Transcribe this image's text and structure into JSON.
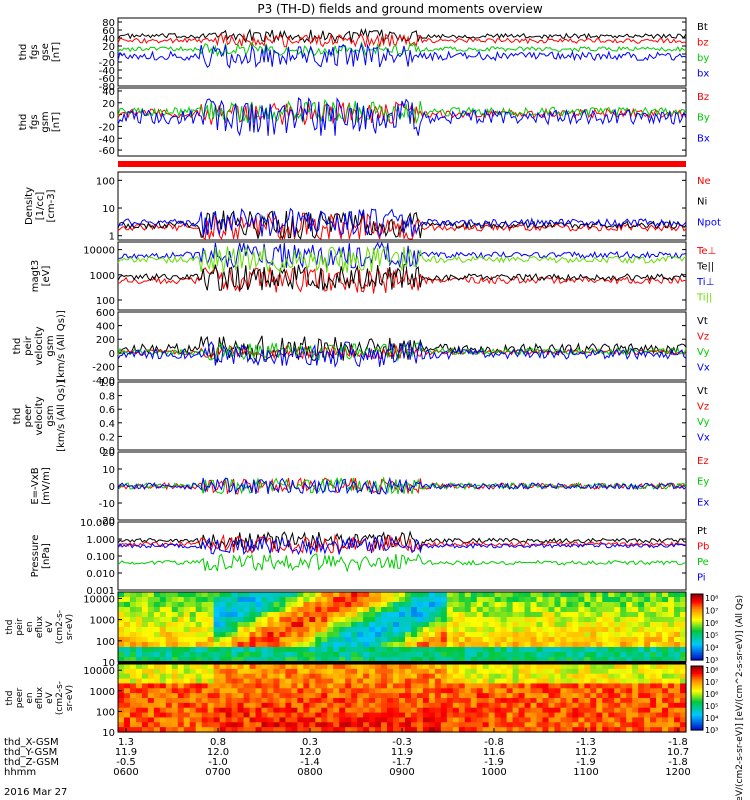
{
  "title": "P3 (TH-D) fields and ground moments overview",
  "colors": {
    "black": "#000000",
    "red": "#ff0000",
    "green": "#00cc00",
    "blue": "#0000ff",
    "lightgreen": "#66dd00",
    "redbar": "#ff0000"
  },
  "chart_data": {
    "type": "line",
    "x_axis": {
      "rows": [
        {
          "label": "thd_X-GSM",
          "values": [
            "1.3",
            "0.8",
            "0.3",
            "-0.3",
            "-0.8",
            "-1.3",
            "-1.8"
          ]
        },
        {
          "label": "thd_Y-GSM",
          "values": [
            "11.9",
            "12.0",
            "12.0",
            "11.9",
            "11.6",
            "11.2",
            "10.7"
          ]
        },
        {
          "label": "thd_Z-GSM",
          "values": [
            "-0.5",
            "-1.0",
            "-1.4",
            "-1.7",
            "-1.9",
            "-1.9",
            "-1.8"
          ]
        },
        {
          "label": "hhmm",
          "values": [
            "0600",
            "0700",
            "0800",
            "0900",
            "1000",
            "1100",
            "1200"
          ]
        }
      ],
      "date": "2016 Mar 27"
    },
    "panels": [
      {
        "id": "fgs_gse",
        "ylabel": [
          "thd",
          "fgs",
          "gse",
          "[nT]"
        ],
        "scale": "linear",
        "ylim": [
          -80,
          90
        ],
        "ticks": [
          "80",
          "60",
          "40",
          "20",
          "0",
          "-20",
          "-40",
          "-60",
          "-80"
        ],
        "series": [
          {
            "name": "Bt",
            "color": "black",
            "mean": 45,
            "amp": 10
          },
          {
            "name": "bz",
            "color": "red",
            "mean": 33,
            "amp": 10
          },
          {
            "name": "by",
            "color": "green",
            "mean": 12,
            "amp": 10
          },
          {
            "name": "bx",
            "color": "blue",
            "mean": -5,
            "amp": 18
          }
        ]
      },
      {
        "id": "fgs_gsm",
        "ylabel": [
          "thd",
          "fgs",
          "gsm",
          "[nT]"
        ],
        "scale": "linear",
        "ylim": [
          -70,
          45
        ],
        "ticks": [
          "40",
          "20",
          "0",
          "-20",
          "-40",
          "-60"
        ],
        "series": [
          {
            "name": "Bz",
            "color": "red",
            "mean": 2,
            "amp": 12
          },
          {
            "name": "By",
            "color": "green",
            "mean": 5,
            "amp": 12
          },
          {
            "name": "Bx",
            "color": "blue",
            "mean": -4,
            "amp": 20
          }
        ]
      },
      {
        "id": "density",
        "ylabel": [
          "Density",
          "[1/cc]",
          "[cm-3]"
        ],
        "scale": "log",
        "ylim": [
          0.7,
          200
        ],
        "ticks": [
          "100",
          "10",
          "1"
        ],
        "series": [
          {
            "name": "Ne",
            "color": "red",
            "mean": 2,
            "amp": 4
          },
          {
            "name": "Ni",
            "color": "black",
            "mean": 2.5,
            "amp": 5
          },
          {
            "name": "Npot",
            "color": "blue",
            "mean": 3,
            "amp": 60
          }
        ]
      },
      {
        "id": "temp",
        "ylabel": [
          "magt3",
          "[eV]"
        ],
        "scale": "log",
        "ylim": [
          40,
          20000
        ],
        "ticks": [
          "10000",
          "1000",
          "100"
        ],
        "series": [
          {
            "name": "Te⊥",
            "color": "red",
            "mean": 600,
            "amp": 200
          },
          {
            "name": "Te||",
            "color": "black",
            "mean": 800,
            "amp": 250
          },
          {
            "name": "Ti⊥",
            "color": "blue",
            "mean": 6000,
            "amp": 2000
          },
          {
            "name": "Ti||",
            "color": "lightgreen",
            "mean": 4000,
            "amp": 1500
          }
        ]
      },
      {
        "id": "vi",
        "ylabel": [
          "thd",
          "peir",
          "velocity",
          "gsm",
          "[km/s (All Qs)]"
        ],
        "scale": "linear",
        "ylim": [
          -400,
          600
        ],
        "ticks": [
          "600",
          "400",
          "200",
          "0",
          "-200",
          "-400"
        ],
        "series": [
          {
            "name": "Vt",
            "color": "black",
            "mean": 60,
            "amp": 120
          },
          {
            "name": "Vz",
            "color": "red",
            "mean": 10,
            "amp": 60
          },
          {
            "name": "Vy",
            "color": "green",
            "mean": 20,
            "amp": 80
          },
          {
            "name": "Vx",
            "color": "blue",
            "mean": -20,
            "amp": 120
          }
        ]
      },
      {
        "id": "ve",
        "ylabel": [
          "thd",
          "peer",
          "velocity",
          "gsm",
          "[km/s (All Qs)]"
        ],
        "scale": "linear",
        "ylim": [
          0,
          1.0
        ],
        "ticks": [
          "1.0",
          "0.8",
          "0.6",
          "0.4",
          "0.2",
          "0.0"
        ],
        "series": [
          {
            "name": "Vt",
            "color": "black",
            "mean": 0,
            "amp": 0
          },
          {
            "name": "Vz",
            "color": "red",
            "mean": 0,
            "amp": 0
          },
          {
            "name": "Vy",
            "color": "green",
            "mean": 0,
            "amp": 0
          },
          {
            "name": "Vx",
            "color": "blue",
            "mean": 0,
            "amp": 0
          }
        ]
      },
      {
        "id": "efield",
        "ylabel": [
          "E=-VxB",
          "[mV/m]"
        ],
        "scale": "linear",
        "ylim": [
          -20,
          20
        ],
        "ticks": [
          "20",
          "10",
          "0",
          "-10",
          "-20"
        ],
        "series": [
          {
            "name": "Ez",
            "color": "red",
            "mean": 0,
            "amp": 3
          },
          {
            "name": "Ey",
            "color": "green",
            "mean": 0,
            "amp": 3
          },
          {
            "name": "Ex",
            "color": "blue",
            "mean": 0,
            "amp": 3
          }
        ]
      },
      {
        "id": "pressure",
        "ylabel": [
          "Pressure",
          "[nPa]"
        ],
        "scale": "log",
        "ylim": [
          0.001,
          10
        ],
        "ticks": [
          "10.000",
          "1.000",
          "0.100",
          "0.010",
          "0.001"
        ],
        "series": [
          {
            "name": "Pt",
            "color": "black",
            "mean": 0.8,
            "amp": 0.2
          },
          {
            "name": "Pb",
            "color": "red",
            "mean": 0.5,
            "amp": 0.2
          },
          {
            "name": "Pe",
            "color": "green",
            "mean": 0.04,
            "amp": 0.02
          },
          {
            "name": "Pi",
            "color": "blue",
            "mean": 0.4,
            "amp": 0.2
          }
        ]
      }
    ],
    "spectrograms": [
      {
        "id": "peir_eflux",
        "ylabel": [
          "thd",
          "peir",
          "en",
          "eflux",
          "eV",
          "(cm2-s-",
          "sr-eV)"
        ],
        "scale": "log",
        "ylim": [
          10,
          20000
        ],
        "ticks": [
          "10000",
          "1000",
          "100",
          "10"
        ]
      },
      {
        "id": "peer_eflux",
        "ylabel": [
          "thd",
          "peer",
          "en",
          "eflux",
          "eV",
          "(cm2-s-",
          "sr-eV)"
        ],
        "scale": "log",
        "ylim": [
          10,
          20000
        ],
        "ticks": [
          "10000",
          "1000",
          "100",
          "10"
        ]
      }
    ],
    "colorbar": {
      "ticks": [
        "10⁸",
        "10⁷",
        "10⁶",
        "10⁵",
        "10⁴",
        "10³"
      ],
      "ticks_lower": [
        "10⁸",
        "10⁷",
        "10⁶",
        "10⁵",
        "10⁴",
        "10³"
      ],
      "label": "[eV/(cm2-s-sr-eV)] [eV/(cm^2-s-sr-eV)] (All Qs)"
    }
  }
}
